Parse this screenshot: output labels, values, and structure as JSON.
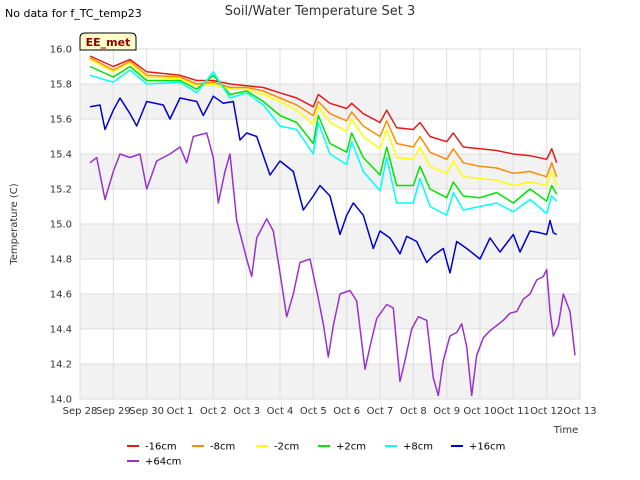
{
  "top_note": "No data for f_TC_temp23",
  "chart_data": {
    "type": "line",
    "title": "Soil/Water Temperature Set 3",
    "xlabel": "Time",
    "ylabel": "Temperature (C)",
    "badge": "EE_met",
    "x_ticks": [
      "Sep 28",
      "Sep 29",
      "Sep 30",
      "Oct 1",
      "Oct 2",
      "Oct 3",
      "Oct 4",
      "Oct 5",
      "Oct 6",
      "Oct 7",
      "Oct 8",
      "Oct 9",
      "Oct 10",
      "Oct 11",
      "Oct 12",
      "Oct 13"
    ],
    "x_range_days": [
      0,
      15
    ],
    "ylim": [
      14.0,
      16.0
    ],
    "y_ticks": [
      "14.0",
      "14.2",
      "14.4",
      "14.6",
      "14.8",
      "15.0",
      "15.2",
      "15.4",
      "15.6",
      "15.8",
      "16.0"
    ],
    "grid": true,
    "legend_position": "bottom",
    "colors": {
      "band": "#f2f2f2",
      "grid": "#dddddd",
      "badge_fill": "#ffffcc"
    },
    "series": [
      {
        "name": "-16cm",
        "color": "#e31a1c",
        "points": [
          [
            0.3,
            15.96
          ],
          [
            1.0,
            15.9
          ],
          [
            1.5,
            15.94
          ],
          [
            2.0,
            15.87
          ],
          [
            3.0,
            15.85
          ],
          [
            3.5,
            15.82
          ],
          [
            4.0,
            15.82
          ],
          [
            4.5,
            15.8
          ],
          [
            5.0,
            15.79
          ],
          [
            5.5,
            15.78
          ],
          [
            6.0,
            15.75
          ],
          [
            6.5,
            15.72
          ],
          [
            7.0,
            15.67
          ],
          [
            7.15,
            15.74
          ],
          [
            7.5,
            15.69
          ],
          [
            8.0,
            15.66
          ],
          [
            8.15,
            15.69
          ],
          [
            8.5,
            15.63
          ],
          [
            9.0,
            15.58
          ],
          [
            9.2,
            15.65
          ],
          [
            9.5,
            15.55
          ],
          [
            10.0,
            15.54
          ],
          [
            10.2,
            15.58
          ],
          [
            10.5,
            15.5
          ],
          [
            11.0,
            15.47
          ],
          [
            11.2,
            15.52
          ],
          [
            11.5,
            15.44
          ],
          [
            12.0,
            15.43
          ],
          [
            12.5,
            15.42
          ],
          [
            13.0,
            15.4
          ],
          [
            13.5,
            15.39
          ],
          [
            14.0,
            15.37
          ],
          [
            14.15,
            15.43
          ],
          [
            14.3,
            15.35
          ]
        ]
      },
      {
        "name": "-8cm",
        "color": "#ff8c00",
        "points": [
          [
            0.3,
            15.95
          ],
          [
            1.0,
            15.88
          ],
          [
            1.5,
            15.93
          ],
          [
            2.0,
            15.85
          ],
          [
            3.0,
            15.84
          ],
          [
            3.5,
            15.8
          ],
          [
            4.0,
            15.81
          ],
          [
            4.5,
            15.78
          ],
          [
            5.0,
            15.78
          ],
          [
            5.5,
            15.76
          ],
          [
            6.0,
            15.72
          ],
          [
            6.5,
            15.68
          ],
          [
            7.0,
            15.62
          ],
          [
            7.15,
            15.7
          ],
          [
            7.5,
            15.63
          ],
          [
            8.0,
            15.59
          ],
          [
            8.15,
            15.64
          ],
          [
            8.5,
            15.56
          ],
          [
            9.0,
            15.5
          ],
          [
            9.2,
            15.59
          ],
          [
            9.5,
            15.46
          ],
          [
            10.0,
            15.44
          ],
          [
            10.2,
            15.5
          ],
          [
            10.5,
            15.41
          ],
          [
            11.0,
            15.37
          ],
          [
            11.2,
            15.43
          ],
          [
            11.5,
            15.35
          ],
          [
            12.0,
            15.33
          ],
          [
            12.5,
            15.32
          ],
          [
            13.0,
            15.29
          ],
          [
            13.5,
            15.3
          ],
          [
            14.0,
            15.27
          ],
          [
            14.15,
            15.35
          ],
          [
            14.3,
            15.27
          ]
        ]
      },
      {
        "name": "-2cm",
        "color": "#ffff00",
        "points": [
          [
            0.3,
            15.94
          ],
          [
            1.0,
            15.87
          ],
          [
            1.5,
            15.92
          ],
          [
            2.0,
            15.84
          ],
          [
            3.0,
            15.83
          ],
          [
            3.5,
            15.79
          ],
          [
            4.0,
            15.8
          ],
          [
            4.5,
            15.77
          ],
          [
            5.0,
            15.77
          ],
          [
            5.5,
            15.74
          ],
          [
            6.0,
            15.7
          ],
          [
            6.5,
            15.65
          ],
          [
            7.0,
            15.57
          ],
          [
            7.15,
            15.67
          ],
          [
            7.5,
            15.58
          ],
          [
            8.0,
            15.53
          ],
          [
            8.15,
            15.6
          ],
          [
            8.5,
            15.5
          ],
          [
            9.0,
            15.43
          ],
          [
            9.2,
            15.54
          ],
          [
            9.5,
            15.38
          ],
          [
            10.0,
            15.37
          ],
          [
            10.2,
            15.44
          ],
          [
            10.5,
            15.33
          ],
          [
            11.0,
            15.29
          ],
          [
            11.2,
            15.36
          ],
          [
            11.5,
            15.27
          ],
          [
            12.0,
            15.26
          ],
          [
            12.5,
            15.25
          ],
          [
            13.0,
            15.22
          ],
          [
            13.5,
            15.24
          ],
          [
            14.0,
            15.22
          ],
          [
            14.15,
            15.3
          ],
          [
            14.3,
            15.22
          ]
        ]
      },
      {
        "name": "+2cm",
        "color": "#00e400",
        "points": [
          [
            0.3,
            15.9
          ],
          [
            1.0,
            15.84
          ],
          [
            1.5,
            15.9
          ],
          [
            2.0,
            15.82
          ],
          [
            3.0,
            15.82
          ],
          [
            3.5,
            15.77
          ],
          [
            4.0,
            15.85
          ],
          [
            4.5,
            15.74
          ],
          [
            5.0,
            15.76
          ],
          [
            5.5,
            15.7
          ],
          [
            6.0,
            15.62
          ],
          [
            6.5,
            15.58
          ],
          [
            7.0,
            15.46
          ],
          [
            7.15,
            15.62
          ],
          [
            7.5,
            15.46
          ],
          [
            8.0,
            15.41
          ],
          [
            8.15,
            15.52
          ],
          [
            8.5,
            15.38
          ],
          [
            9.0,
            15.28
          ],
          [
            9.2,
            15.44
          ],
          [
            9.5,
            15.22
          ],
          [
            10.0,
            15.22
          ],
          [
            10.2,
            15.33
          ],
          [
            10.5,
            15.2
          ],
          [
            11.0,
            15.15
          ],
          [
            11.2,
            15.24
          ],
          [
            11.5,
            15.16
          ],
          [
            12.0,
            15.15
          ],
          [
            12.5,
            15.18
          ],
          [
            13.0,
            15.12
          ],
          [
            13.5,
            15.2
          ],
          [
            14.0,
            15.13
          ],
          [
            14.15,
            15.22
          ],
          [
            14.3,
            15.17
          ]
        ]
      },
      {
        "name": "+8cm",
        "color": "#00ffff",
        "points": [
          [
            0.3,
            15.85
          ],
          [
            1.0,
            15.81
          ],
          [
            1.5,
            15.88
          ],
          [
            2.0,
            15.8
          ],
          [
            3.0,
            15.81
          ],
          [
            3.5,
            15.75
          ],
          [
            4.0,
            15.87
          ],
          [
            4.5,
            15.72
          ],
          [
            5.0,
            15.75
          ],
          [
            5.5,
            15.68
          ],
          [
            6.0,
            15.56
          ],
          [
            6.5,
            15.54
          ],
          [
            7.0,
            15.4
          ],
          [
            7.15,
            15.58
          ],
          [
            7.5,
            15.4
          ],
          [
            8.0,
            15.34
          ],
          [
            8.15,
            15.47
          ],
          [
            8.5,
            15.3
          ],
          [
            9.0,
            15.19
          ],
          [
            9.2,
            15.38
          ],
          [
            9.5,
            15.12
          ],
          [
            10.0,
            15.12
          ],
          [
            10.2,
            15.26
          ],
          [
            10.5,
            15.1
          ],
          [
            11.0,
            15.05
          ],
          [
            11.2,
            15.18
          ],
          [
            11.5,
            15.08
          ],
          [
            12.0,
            15.1
          ],
          [
            12.5,
            15.12
          ],
          [
            13.0,
            15.07
          ],
          [
            13.5,
            15.14
          ],
          [
            14.0,
            15.06
          ],
          [
            14.15,
            15.16
          ],
          [
            14.3,
            15.13
          ]
        ]
      },
      {
        "name": "+16cm",
        "color": "#0000cd",
        "points": [
          [
            0.3,
            15.67
          ],
          [
            0.6,
            15.68
          ],
          [
            0.75,
            15.54
          ],
          [
            1.0,
            15.65
          ],
          [
            1.2,
            15.72
          ],
          [
            1.5,
            15.63
          ],
          [
            1.7,
            15.56
          ],
          [
            2.0,
            15.7
          ],
          [
            2.5,
            15.68
          ],
          [
            2.7,
            15.6
          ],
          [
            3.0,
            15.72
          ],
          [
            3.5,
            15.7
          ],
          [
            3.7,
            15.62
          ],
          [
            4.0,
            15.73
          ],
          [
            4.3,
            15.69
          ],
          [
            4.6,
            15.7
          ],
          [
            4.8,
            15.48
          ],
          [
            5.0,
            15.52
          ],
          [
            5.3,
            15.5
          ],
          [
            5.7,
            15.28
          ],
          [
            6.0,
            15.36
          ],
          [
            6.4,
            15.3
          ],
          [
            6.7,
            15.08
          ],
          [
            7.0,
            15.16
          ],
          [
            7.2,
            15.22
          ],
          [
            7.5,
            15.16
          ],
          [
            7.8,
            14.94
          ],
          [
            8.0,
            15.05
          ],
          [
            8.2,
            15.12
          ],
          [
            8.5,
            15.05
          ],
          [
            8.8,
            14.86
          ],
          [
            9.0,
            14.96
          ],
          [
            9.3,
            14.92
          ],
          [
            9.6,
            14.83
          ],
          [
            9.8,
            14.93
          ],
          [
            10.1,
            14.9
          ],
          [
            10.4,
            14.78
          ],
          [
            10.6,
            14.82
          ],
          [
            10.9,
            14.86
          ],
          [
            11.1,
            14.72
          ],
          [
            11.3,
            14.9
          ],
          [
            11.6,
            14.86
          ],
          [
            12.0,
            14.8
          ],
          [
            12.3,
            14.92
          ],
          [
            12.6,
            14.84
          ],
          [
            13.0,
            14.94
          ],
          [
            13.2,
            14.84
          ],
          [
            13.5,
            14.96
          ],
          [
            13.8,
            14.95
          ],
          [
            14.0,
            14.94
          ],
          [
            14.1,
            15.02
          ],
          [
            14.2,
            14.95
          ],
          [
            14.3,
            14.94
          ]
        ]
      },
      {
        "name": "+64cm",
        "color": "#9932cc",
        "points": [
          [
            0.3,
            15.35
          ],
          [
            0.5,
            15.38
          ],
          [
            0.75,
            15.14
          ],
          [
            1.0,
            15.3
          ],
          [
            1.2,
            15.4
          ],
          [
            1.5,
            15.38
          ],
          [
            1.8,
            15.4
          ],
          [
            2.0,
            15.2
          ],
          [
            2.3,
            15.36
          ],
          [
            2.7,
            15.4
          ],
          [
            3.0,
            15.44
          ],
          [
            3.2,
            15.35
          ],
          [
            3.4,
            15.5
          ],
          [
            3.8,
            15.52
          ],
          [
            4.0,
            15.38
          ],
          [
            4.15,
            15.12
          ],
          [
            4.35,
            15.3
          ],
          [
            4.5,
            15.4
          ],
          [
            4.7,
            15.02
          ],
          [
            5.0,
            14.8
          ],
          [
            5.15,
            14.7
          ],
          [
            5.3,
            14.92
          ],
          [
            5.6,
            15.03
          ],
          [
            5.8,
            14.96
          ],
          [
            6.0,
            14.72
          ],
          [
            6.2,
            14.47
          ],
          [
            6.4,
            14.6
          ],
          [
            6.6,
            14.78
          ],
          [
            6.9,
            14.8
          ],
          [
            7.1,
            14.62
          ],
          [
            7.3,
            14.43
          ],
          [
            7.45,
            14.24
          ],
          [
            7.6,
            14.42
          ],
          [
            7.8,
            14.6
          ],
          [
            8.1,
            14.62
          ],
          [
            8.3,
            14.56
          ],
          [
            8.55,
            14.17
          ],
          [
            8.7,
            14.3
          ],
          [
            8.9,
            14.46
          ],
          [
            9.2,
            14.54
          ],
          [
            9.4,
            14.52
          ],
          [
            9.6,
            14.1
          ],
          [
            9.75,
            14.22
          ],
          [
            9.95,
            14.4
          ],
          [
            10.15,
            14.47
          ],
          [
            10.4,
            14.45
          ],
          [
            10.6,
            14.12
          ],
          [
            10.75,
            14.02
          ],
          [
            10.9,
            14.22
          ],
          [
            11.1,
            14.36
          ],
          [
            11.3,
            14.38
          ],
          [
            11.45,
            14.43
          ],
          [
            11.6,
            14.3
          ],
          [
            11.75,
            14.02
          ],
          [
            11.9,
            14.25
          ],
          [
            12.1,
            14.35
          ],
          [
            12.3,
            14.39
          ],
          [
            12.5,
            14.42
          ],
          [
            12.7,
            14.45
          ],
          [
            12.9,
            14.49
          ],
          [
            13.1,
            14.5
          ],
          [
            13.3,
            14.57
          ],
          [
            13.5,
            14.6
          ],
          [
            13.7,
            14.68
          ],
          [
            13.9,
            14.7
          ],
          [
            14.0,
            14.74
          ],
          [
            14.1,
            14.5
          ],
          [
            14.2,
            14.36
          ],
          [
            14.35,
            14.42
          ],
          [
            14.5,
            14.6
          ],
          [
            14.7,
            14.5
          ],
          [
            14.85,
            14.25
          ]
        ]
      }
    ]
  }
}
